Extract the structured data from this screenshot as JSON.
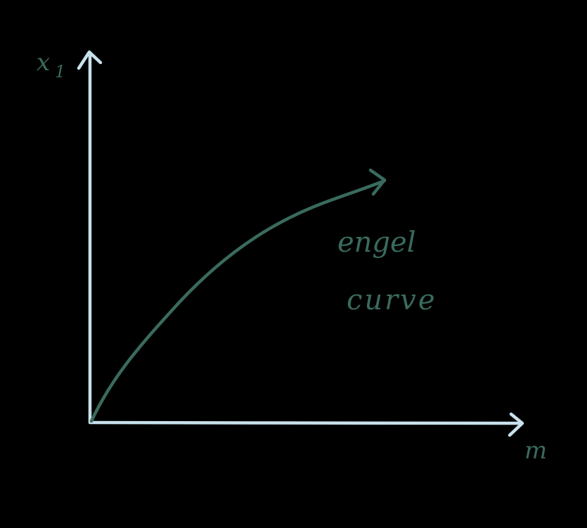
{
  "diagram": {
    "y_axis_label": "x",
    "y_axis_subscript": "1",
    "x_axis_label": "m",
    "curve_label_line1": "engel",
    "curve_label_line2": "curve"
  },
  "colors": {
    "background": "#000000",
    "axes": "#c8e1ec",
    "curve": "#3a6a5e",
    "labels": "#3a6a5e"
  }
}
